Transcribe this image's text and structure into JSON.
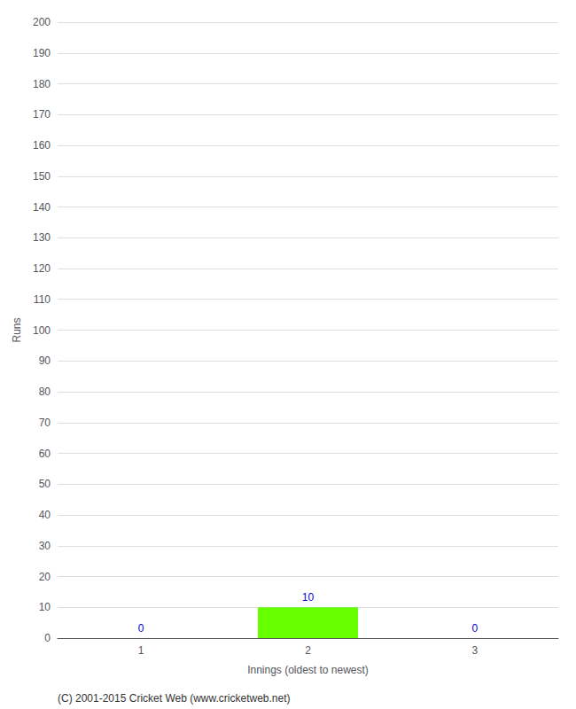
{
  "chart_data": {
    "type": "bar",
    "xlabel": "Innings (oldest to newest)",
    "ylabel": "Runs",
    "categories": [
      1,
      2,
      3
    ],
    "values": [
      0,
      10,
      0
    ],
    "color": "#66ff00",
    "ylim": [
      0,
      200
    ],
    "yticks": [
      0,
      10,
      20,
      30,
      40,
      50,
      60,
      70,
      80,
      90,
      100,
      110,
      120,
      130,
      140,
      150,
      160,
      170,
      180,
      190,
      200
    ],
    "grid": true,
    "data_labels": true,
    "annotations": [
      "(C) 2001-2015 Cricket Web (www.cricketweb.net)"
    ]
  }
}
